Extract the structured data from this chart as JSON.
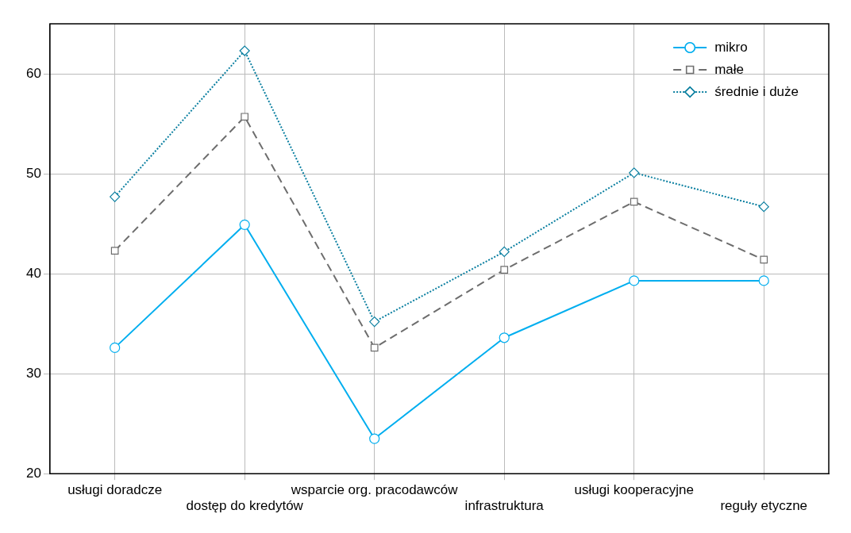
{
  "chart_data": {
    "type": "line",
    "categories": [
      "usługi doradcze",
      "dostęp do kredytów",
      "wsparcie org. pracodawców",
      "infrastruktura",
      "usługi kooperacyjne",
      "reguły etyczne"
    ],
    "series": [
      {
        "name": "mikro",
        "color": "#00aeef",
        "marker": "circle",
        "line_style": "solid",
        "values": [
          32.6,
          44.9,
          23.5,
          33.6,
          39.3,
          39.3
        ]
      },
      {
        "name": "małe",
        "color": "#6d6d6d",
        "marker": "square",
        "line_style": "dashed",
        "values": [
          42.3,
          55.7,
          32.6,
          40.4,
          47.2,
          41.4
        ]
      },
      {
        "name": "średnie i duże",
        "color": "#0a7fa0",
        "marker": "diamond",
        "line_style": "dotted",
        "values": [
          47.7,
          62.3,
          35.2,
          42.2,
          50.1,
          46.7
        ]
      }
    ],
    "ylim": [
      20,
      65
    ],
    "yticks": [
      20,
      30,
      40,
      50,
      60
    ],
    "grid": true,
    "legend": "top right"
  }
}
